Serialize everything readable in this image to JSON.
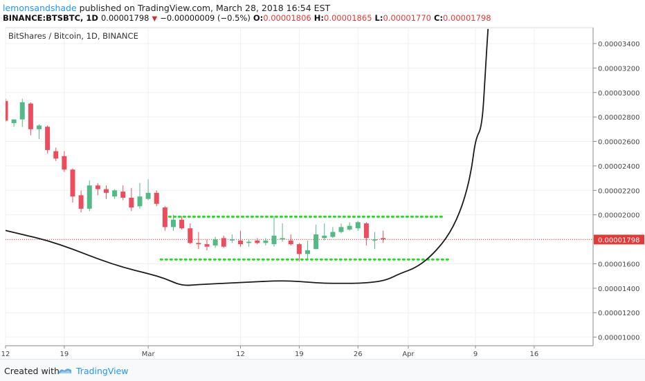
{
  "header": {
    "author": "lemonsandshade",
    "published_text": "published on TradingView.com, March 28, 2018 16:54 EST",
    "symbol": "BINANCE:BTSBTC, 1D",
    "last": "0.00001798",
    "change": "−0.00000009 (−0.5%)",
    "o_label": "O:",
    "o_value": "0.00001806",
    "h_label": "H:",
    "h_value": "0.00001865",
    "l_label": "L:",
    "l_value": "0.00001770",
    "c_label": "C:",
    "c_value": "0.00001798"
  },
  "footer": {
    "created_with": "Created with",
    "brand": "TradingView"
  },
  "colors": {
    "up": "#53b987",
    "down": "#eb4d5c",
    "accent": "#2196f3",
    "price_line": "#e53935",
    "curve": "#1a1a1a",
    "dotted": "#22dd22"
  },
  "chart_data": {
    "type": "candlestick",
    "title": "BitShares / Bitcoin, 1D, BINANCE",
    "ylim": [
      9.3e-06,
      3.53e-05
    ],
    "y_ticks": [
      "0.00003400",
      "0.00003200",
      "0.00003000",
      "0.00002800",
      "0.00002600",
      "0.00002400",
      "0.00002200",
      "0.00002000",
      "0.00001800",
      "0.00001600",
      "0.00001400",
      "0.00001200",
      "0.00001000"
    ],
    "y_tick_values": [
      3.4e-05,
      3.2e-05,
      3e-05,
      2.8e-05,
      2.6e-05,
      2.4e-05,
      2.2e-05,
      2e-05,
      1.8e-05,
      1.6e-05,
      1.4e-05,
      1.2e-05,
      1e-05
    ],
    "x_ticks": [
      {
        "label": "12",
        "day": 0
      },
      {
        "label": "19",
        "day": 7
      },
      {
        "label": "Mar",
        "day": 17
      },
      {
        "label": "12",
        "day": 28
      },
      {
        "label": "19",
        "day": 35
      },
      {
        "label": "26",
        "day": 42
      },
      {
        "label": "Apr",
        "day": 48
      },
      {
        "label": "9",
        "day": 56
      },
      {
        "label": "16",
        "day": 63
      }
    ],
    "last_price_label": "0.00001798",
    "last_price": 1.798e-05,
    "candles": [
      {
        "day": 0,
        "o": 2.93,
        "h": 2.95,
        "l": 2.76,
        "c": 2.77
      },
      {
        "day": 1,
        "o": 2.75,
        "h": 2.78,
        "l": 2.72,
        "c": 2.78
      },
      {
        "day": 2,
        "o": 2.78,
        "h": 2.95,
        "l": 2.72,
        "c": 2.92
      },
      {
        "day": 3,
        "o": 2.91,
        "h": 2.92,
        "l": 2.65,
        "c": 2.7
      },
      {
        "day": 4,
        "o": 2.7,
        "h": 2.74,
        "l": 2.62,
        "c": 2.73
      },
      {
        "day": 5,
        "o": 2.72,
        "h": 2.73,
        "l": 2.5,
        "c": 2.53
      },
      {
        "day": 6,
        "o": 2.52,
        "h": 2.55,
        "l": 2.44,
        "c": 2.46
      },
      {
        "day": 7,
        "o": 2.48,
        "h": 2.52,
        "l": 2.35,
        "c": 2.37
      },
      {
        "day": 8,
        "o": 2.37,
        "h": 2.38,
        "l": 2.1,
        "c": 2.15
      },
      {
        "day": 9,
        "o": 2.16,
        "h": 2.2,
        "l": 2.02,
        "c": 2.05
      },
      {
        "day": 10,
        "o": 2.05,
        "h": 2.28,
        "l": 2.03,
        "c": 2.24
      },
      {
        "day": 11,
        "o": 2.24,
        "h": 2.26,
        "l": 2.16,
        "c": 2.21
      },
      {
        "day": 12,
        "o": 2.21,
        "h": 2.24,
        "l": 2.13,
        "c": 2.18
      },
      {
        "day": 13,
        "o": 2.15,
        "h": 2.21,
        "l": 2.13,
        "c": 2.2
      },
      {
        "day": 14,
        "o": 2.19,
        "h": 2.24,
        "l": 2.12,
        "c": 2.14
      },
      {
        "day": 15,
        "o": 2.14,
        "h": 2.22,
        "l": 2.03,
        "c": 2.06
      },
      {
        "day": 16,
        "o": 2.07,
        "h": 2.26,
        "l": 2.05,
        "c": 2.15
      },
      {
        "day": 17,
        "o": 2.13,
        "h": 2.29,
        "l": 2.12,
        "c": 2.18
      },
      {
        "day": 18,
        "o": 2.18,
        "h": 2.2,
        "l": 2.07,
        "c": 2.09
      },
      {
        "day": 19,
        "o": 2.06,
        "h": 2.07,
        "l": 1.87,
        "c": 1.9
      },
      {
        "day": 20,
        "o": 1.9,
        "h": 2.0,
        "l": 1.87,
        "c": 1.96
      },
      {
        "day": 21,
        "o": 1.96,
        "h": 1.99,
        "l": 1.88,
        "c": 1.89
      },
      {
        "day": 22,
        "o": 1.89,
        "h": 1.93,
        "l": 1.76,
        "c": 1.77
      },
      {
        "day": 23,
        "o": 1.77,
        "h": 1.86,
        "l": 1.72,
        "c": 1.76
      },
      {
        "day": 24,
        "o": 1.76,
        "h": 1.8,
        "l": 1.71,
        "c": 1.74
      },
      {
        "day": 25,
        "o": 1.75,
        "h": 1.82,
        "l": 1.73,
        "c": 1.8
      },
      {
        "day": 26,
        "o": 1.81,
        "h": 1.83,
        "l": 1.73,
        "c": 1.74
      },
      {
        "day": 27,
        "o": 1.79,
        "h": 1.84,
        "l": 1.77,
        "c": 1.8
      },
      {
        "day": 28,
        "o": 1.79,
        "h": 1.87,
        "l": 1.74,
        "c": 1.76
      },
      {
        "day": 29,
        "o": 1.77,
        "h": 1.8,
        "l": 1.74,
        "c": 1.78
      },
      {
        "day": 30,
        "o": 1.79,
        "h": 1.81,
        "l": 1.76,
        "c": 1.77
      },
      {
        "day": 31,
        "o": 1.77,
        "h": 1.81,
        "l": 1.75,
        "c": 1.79
      },
      {
        "day": 32,
        "o": 1.76,
        "h": 1.99,
        "l": 1.74,
        "c": 1.83
      },
      {
        "day": 33,
        "o": 1.8,
        "h": 1.93,
        "l": 1.78,
        "c": 1.81
      },
      {
        "day": 34,
        "o": 1.79,
        "h": 1.84,
        "l": 1.75,
        "c": 1.76
      },
      {
        "day": 35,
        "o": 1.76,
        "h": 1.77,
        "l": 1.62,
        "c": 1.68
      },
      {
        "day": 36,
        "o": 1.68,
        "h": 1.79,
        "l": 1.64,
        "c": 1.71
      },
      {
        "day": 37,
        "o": 1.72,
        "h": 1.92,
        "l": 1.72,
        "c": 1.84
      },
      {
        "day": 38,
        "o": 1.81,
        "h": 1.93,
        "l": 1.79,
        "c": 1.83
      },
      {
        "day": 39,
        "o": 1.82,
        "h": 1.9,
        "l": 1.81,
        "c": 1.86
      },
      {
        "day": 40,
        "o": 1.86,
        "h": 1.93,
        "l": 1.85,
        "c": 1.9
      },
      {
        "day": 41,
        "o": 1.88,
        "h": 1.94,
        "l": 1.87,
        "c": 1.91
      },
      {
        "day": 42,
        "o": 1.89,
        "h": 1.95,
        "l": 1.87,
        "c": 1.94
      },
      {
        "day": 43,
        "o": 1.93,
        "h": 1.94,
        "l": 1.75,
        "c": 1.81
      },
      {
        "day": 44,
        "o": 1.79,
        "h": 1.86,
        "l": 1.72,
        "c": 1.8
      },
      {
        "day": 45,
        "o": 1.81,
        "h": 1.87,
        "l": 1.77,
        "c": 1.8
      }
    ],
    "value_scale": 1e-05,
    "annotations": {
      "resistance": {
        "value": 1.985e-05,
        "from_day": 19.5,
        "to_day": 52
      },
      "support": {
        "value": 1.635e-05,
        "from_day": 18.5,
        "to_day": 53
      }
    },
    "curve": [
      [
        -0.5,
        1.88
      ],
      [
        2,
        1.84
      ],
      [
        5,
        1.79
      ],
      [
        8,
        1.72
      ],
      [
        11,
        1.64
      ],
      [
        14,
        1.57
      ],
      [
        17,
        1.52
      ],
      [
        19,
        1.48
      ],
      [
        21,
        1.42
      ],
      [
        23,
        1.43
      ],
      [
        26,
        1.44
      ],
      [
        29,
        1.45
      ],
      [
        32,
        1.46
      ],
      [
        34,
        1.46
      ],
      [
        36,
        1.45
      ],
      [
        38,
        1.44
      ],
      [
        40,
        1.44
      ],
      [
        42,
        1.44
      ],
      [
        44,
        1.45
      ],
      [
        45.5,
        1.47
      ],
      [
        47,
        1.52
      ],
      [
        49,
        1.57
      ],
      [
        51,
        1.68
      ],
      [
        53,
        1.85
      ],
      [
        54.5,
        2.08
      ],
      [
        55.5,
        2.35
      ],
      [
        56,
        2.62
      ],
      [
        56.8,
        2.72
      ],
      [
        57.2,
        3.2
      ],
      [
        57.5,
        3.52
      ]
    ]
  }
}
